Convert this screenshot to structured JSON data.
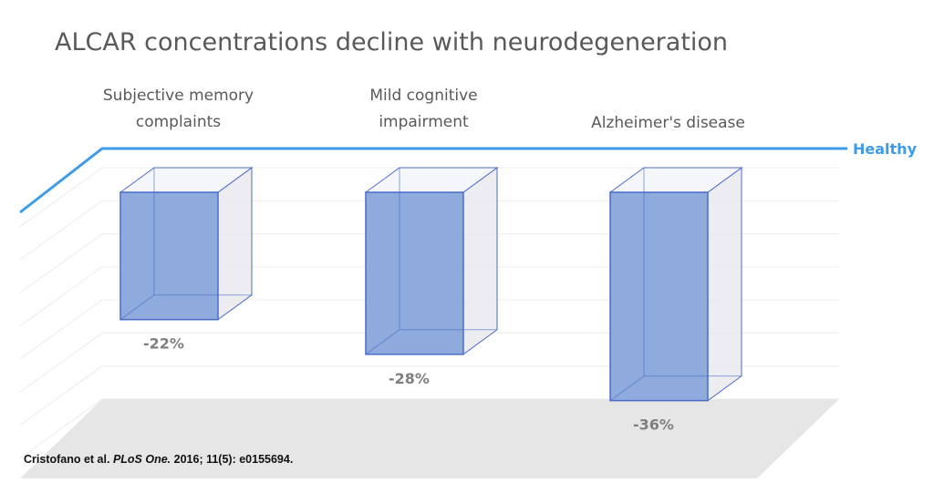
{
  "chart_data": {
    "type": "bar",
    "title": "ALCAR concentrations decline with neurodegeneration",
    "categories": [
      [
        "Subjective memory",
        "complaints"
      ],
      [
        "Mild cognitive",
        "impairment"
      ],
      [
        "Alzheimer's disease"
      ]
    ],
    "values": [
      -22,
      -28,
      -36
    ],
    "value_labels": [
      "-22%",
      "-28%",
      "-36%"
    ],
    "ylim": [
      -40,
      0
    ],
    "reference_line": {
      "value": 0,
      "label": "Healthy"
    },
    "grid": true,
    "colors": {
      "bar_front": "#8faadc",
      "bar_edge": "#4a6cc8",
      "healthy_line": "#3d9be9",
      "floor": "#e6e6e6"
    }
  },
  "citation": {
    "authors": "Cristofano et al.",
    "journal": "PLoS One.",
    "details": "2016; 11(5): e0155694."
  }
}
